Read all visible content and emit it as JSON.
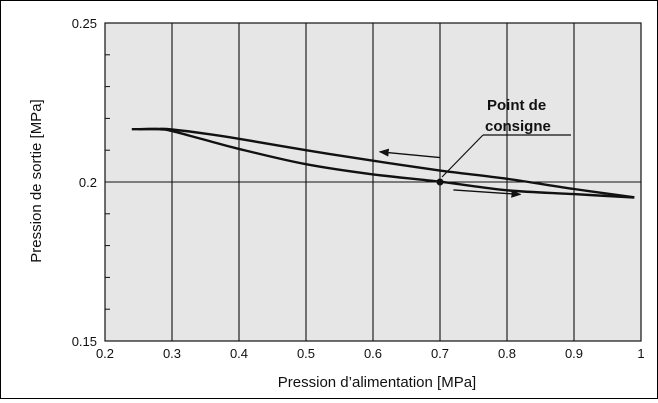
{
  "chart_data": {
    "type": "line",
    "title": "",
    "xlabel": "Pression d’alimentation [MPa]",
    "ylabel": "Pression de sortie [MPa]",
    "xlim": [
      0.2,
      1.0
    ],
    "ylim": [
      0.15,
      0.25
    ],
    "xticks": [
      0.2,
      0.3,
      0.4,
      0.5,
      0.6,
      0.7,
      0.8,
      0.9,
      1
    ],
    "xtick_labels": [
      "0.2",
      "0.3",
      "0.4",
      "0.5",
      "0.6",
      "0.7",
      "0.8",
      "0.9",
      "1"
    ],
    "yticks": [
      0.15,
      0.2,
      0.25
    ],
    "ytick_labels": [
      "0.15",
      "0.2",
      "0.25"
    ],
    "grid": "vertical lines at each x tick; horizontal line at 0.2",
    "background_color": "#e6e6e6",
    "line_color": "#111111",
    "series": [
      {
        "x": [
          0.25,
          0.28,
          0.3,
          0.35,
          0.4,
          0.5,
          0.6,
          0.7,
          0.8,
          0.9,
          0.99
        ],
        "y": [
          0.2166,
          0.2167,
          0.2165,
          0.2152,
          0.2136,
          0.21,
          0.2067,
          0.2036,
          0.201,
          0.1978,
          0.1952
        ]
      },
      {
        "x": [
          0.24,
          0.28,
          0.3,
          0.35,
          0.4,
          0.5,
          0.6,
          0.7,
          0.8,
          0.9,
          0.99
        ],
        "y": [
          0.2166,
          0.2166,
          0.216,
          0.2132,
          0.2104,
          0.2056,
          0.2024,
          0.2001,
          0.1974,
          0.1962,
          0.1951
        ]
      }
    ],
    "arrows": [
      {
        "from": [
          0.7,
          0.2077
        ],
        "to": [
          0.61,
          0.2095
        ]
      },
      {
        "from": [
          0.72,
          0.1975
        ],
        "to": [
          0.82,
          0.1961
        ]
      }
    ],
    "set_point": {
      "x": 0.7,
      "y": 0.2
    },
    "annotations": [
      {
        "text_line1": "Point de",
        "text_line2": "consigne"
      }
    ]
  }
}
